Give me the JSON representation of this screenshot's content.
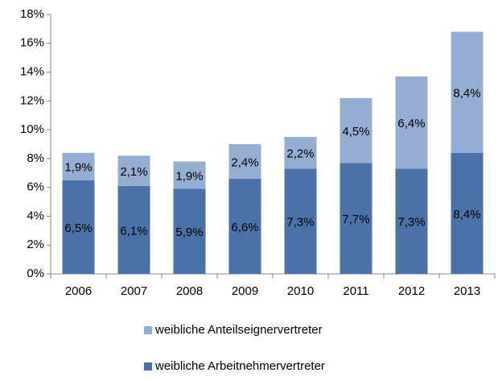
{
  "chart_data": {
    "type": "stacked-bar",
    "categories": [
      "2006",
      "2007",
      "2008",
      "2009",
      "2010",
      "2011",
      "2012",
      "2013"
    ],
    "series": [
      {
        "name": "weibliche Arbeitnehmervertreter",
        "color": "#4a72a8",
        "values": [
          6.5,
          6.1,
          5.9,
          6.6,
          7.3,
          7.7,
          7.3,
          8.4
        ],
        "value_labels": [
          "6,5%",
          "6,1%",
          "5,9%",
          "6,6%",
          "7,3%",
          "7,7%",
          "7,3%",
          "8,4%"
        ]
      },
      {
        "name": "weibliche Anteilseignervertreter",
        "color": "#95acd3",
        "values": [
          1.9,
          2.1,
          1.9,
          2.4,
          2.2,
          4.5,
          6.4,
          8.4
        ],
        "value_labels": [
          "1,9%",
          "2,1%",
          "1,9%",
          "2,4%",
          "2,2%",
          "4,5%",
          "6,4%",
          "8,4%"
        ]
      }
    ],
    "ylim": [
      0,
      18
    ],
    "yticks": [
      {
        "value": 0,
        "label": "0%"
      },
      {
        "value": 2,
        "label": "2%"
      },
      {
        "value": 4,
        "label": "4%"
      },
      {
        "value": 6,
        "label": "6%"
      },
      {
        "value": 8,
        "label": "8%"
      },
      {
        "value": 10,
        "label": "10%"
      },
      {
        "value": 12,
        "label": "12%"
      },
      {
        "value": 14,
        "label": "14%"
      },
      {
        "value": 16,
        "label": "16%"
      },
      {
        "value": 18,
        "label": "18%"
      }
    ],
    "grid": false,
    "legend": "bottom"
  }
}
